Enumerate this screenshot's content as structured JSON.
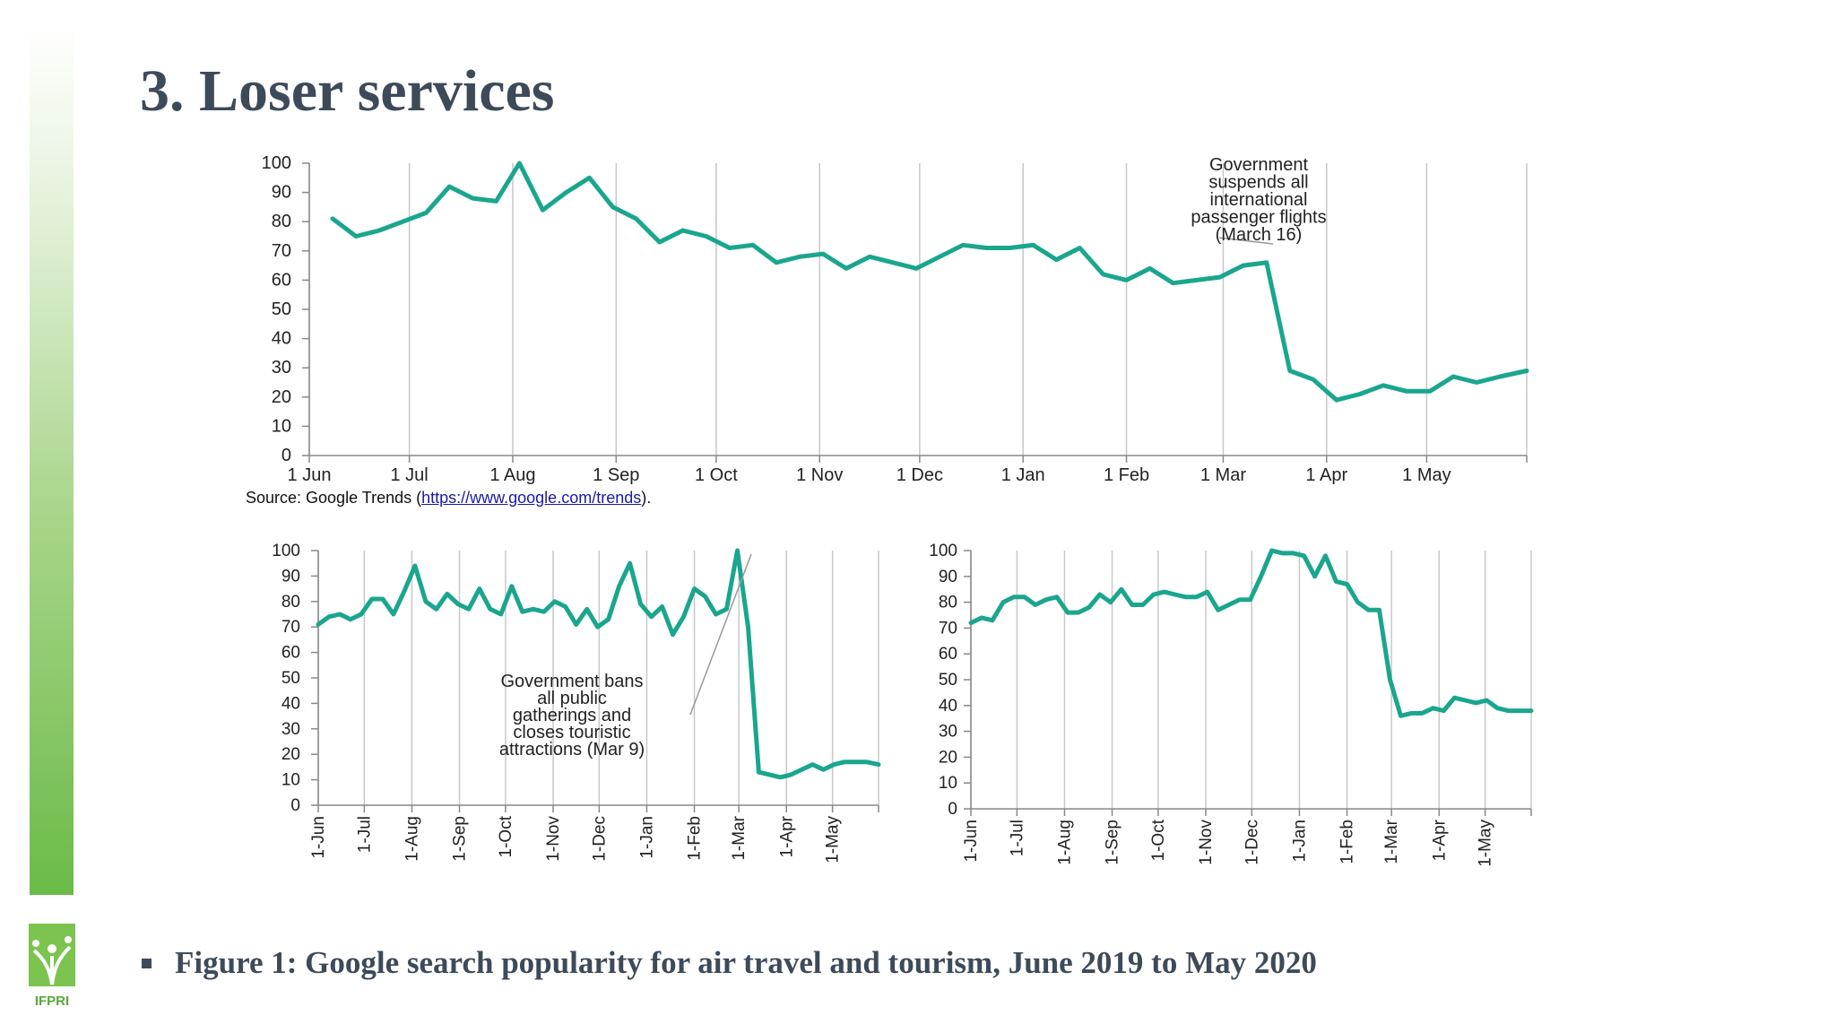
{
  "slide": {
    "title": "3. Loser services",
    "caption": "Figure 1: Google search popularity for air travel and tourism, June 2019 to May 2020",
    "logo_text": "IFPRI",
    "accent_color": "#6bbb48",
    "source_prefix": "Source: Google Trends (",
    "source_link": "https://www.google.com/trends",
    "source_suffix": ")."
  },
  "chart_data": [
    {
      "type": "line",
      "title": "",
      "xlabel": "",
      "ylabel": "",
      "ylim": [
        0,
        100
      ],
      "yticks": [
        0,
        10,
        20,
        30,
        40,
        50,
        60,
        70,
        80,
        90,
        100
      ],
      "grid": "vertical",
      "line_color": "#1aa68e",
      "tick_labels": [
        "1 Jun",
        "1 Jul",
        "1 Aug",
        "1 Sep",
        "1 Oct",
        "1 Nov",
        "1 Dec",
        "1 Jan",
        "1 Feb",
        "1 Mar",
        "1 Apr",
        "1 May"
      ],
      "x_dates": [
        "2019-06-01",
        "2019-07-01",
        "2019-08-01",
        "2019-09-01",
        "2019-10-01",
        "2019-11-01",
        "2019-12-01",
        "2020-01-01",
        "2020-02-01",
        "2020-03-01",
        "2020-04-01",
        "2020-05-01"
      ],
      "x_end": "2020-05-31",
      "series": [
        {
          "x": [
            "2019-06-08",
            "2019-06-15",
            "2019-06-22",
            "2019-06-29",
            "2019-07-06",
            "2019-07-13",
            "2019-07-20",
            "2019-07-27",
            "2019-08-03",
            "2019-08-10",
            "2019-08-17",
            "2019-08-24",
            "2019-08-31",
            "2019-09-07",
            "2019-09-14",
            "2019-09-21",
            "2019-09-28",
            "2019-10-05",
            "2019-10-12",
            "2019-10-19",
            "2019-10-26",
            "2019-11-02",
            "2019-11-09",
            "2019-11-16",
            "2019-11-23",
            "2019-11-30",
            "2019-12-07",
            "2019-12-14",
            "2019-12-21",
            "2019-12-28",
            "2020-01-04",
            "2020-01-11",
            "2020-01-18",
            "2020-01-25",
            "2020-02-01",
            "2020-02-08",
            "2020-02-15",
            "2020-02-22",
            "2020-02-29",
            "2020-03-07",
            "2020-03-14",
            "2020-03-21",
            "2020-03-28",
            "2020-04-04",
            "2020-04-11",
            "2020-04-18",
            "2020-04-25",
            "2020-05-02",
            "2020-05-09",
            "2020-05-16",
            "2020-05-23",
            "2020-05-31"
          ],
          "values": [
            81,
            75,
            77,
            80,
            83,
            92,
            88,
            87,
            100,
            84,
            90,
            95,
            85,
            81,
            73,
            77,
            75,
            71,
            72,
            66,
            68,
            69,
            64,
            68,
            66,
            64,
            68,
            72,
            71,
            71,
            72,
            67,
            71,
            62,
            60,
            64,
            59,
            60,
            61,
            65,
            66,
            29,
            26,
            19,
            21,
            24,
            22,
            22,
            27,
            25,
            27,
            29
          ]
        }
      ],
      "annotations": [
        {
          "lines": [
            "Government",
            "suspends all",
            "international",
            "passenger flights",
            "(March 16)"
          ],
          "points_to": "2020-03-14"
        }
      ],
      "source": "Source: Google Trends (https://www.google.com/trends)."
    },
    {
      "type": "line",
      "title": "",
      "xlabel": "",
      "ylabel": "",
      "ylim": [
        0,
        100
      ],
      "yticks": [
        0,
        10,
        20,
        30,
        40,
        50,
        60,
        70,
        80,
        90,
        100
      ],
      "grid": "vertical",
      "line_color": "#1aa68e",
      "tick_labels": [
        "1-Jun",
        "1-Jul",
        "1-Aug",
        "1-Sep",
        "1-Oct",
        "1-Nov",
        "1-Dec",
        "1-Jan",
        "1-Feb",
        "1-Mar",
        "1-Apr",
        "1-May"
      ],
      "x_dates": [
        "2019-06-01",
        "2019-07-01",
        "2019-08-01",
        "2019-09-01",
        "2019-10-01",
        "2019-11-01",
        "2019-12-01",
        "2020-01-01",
        "2020-02-01",
        "2020-03-01",
        "2020-04-01",
        "2020-05-01"
      ],
      "x_end": "2020-05-31",
      "series": [
        {
          "x": [
            "2019-06-01",
            "2019-06-08",
            "2019-06-15",
            "2019-06-22",
            "2019-06-29",
            "2019-07-06",
            "2019-07-13",
            "2019-07-20",
            "2019-07-27",
            "2019-08-03",
            "2019-08-10",
            "2019-08-17",
            "2019-08-24",
            "2019-08-31",
            "2019-09-07",
            "2019-09-14",
            "2019-09-21",
            "2019-09-28",
            "2019-10-05",
            "2019-10-12",
            "2019-10-19",
            "2019-10-26",
            "2019-11-02",
            "2019-11-09",
            "2019-11-16",
            "2019-11-23",
            "2019-11-30",
            "2019-12-07",
            "2019-12-14",
            "2019-12-21",
            "2019-12-28",
            "2020-01-04",
            "2020-01-11",
            "2020-01-18",
            "2020-01-25",
            "2020-02-01",
            "2020-02-08",
            "2020-02-15",
            "2020-02-22",
            "2020-02-29",
            "2020-03-07",
            "2020-03-14",
            "2020-03-21",
            "2020-03-28",
            "2020-04-04",
            "2020-04-11",
            "2020-04-18",
            "2020-04-25",
            "2020-05-02",
            "2020-05-09",
            "2020-05-16",
            "2020-05-23",
            "2020-05-31"
          ],
          "values": [
            71,
            74,
            75,
            73,
            75,
            81,
            81,
            75,
            84,
            94,
            80,
            77,
            83,
            79,
            77,
            85,
            77,
            75,
            86,
            76,
            77,
            76,
            80,
            78,
            71,
            77,
            70,
            73,
            86,
            95,
            79,
            74,
            78,
            67,
            74,
            85,
            82,
            75,
            77,
            100,
            70,
            13,
            12,
            11,
            12,
            14,
            16,
            14,
            16,
            17,
            17,
            17,
            16
          ]
        }
      ],
      "annotations": [
        {
          "lines": [
            "Government bans",
            "all public",
            "gatherings and",
            "closes touristic",
            "attractions (Mar 9)"
          ],
          "points_to": "2020-03-07"
        }
      ]
    },
    {
      "type": "line",
      "title": "",
      "xlabel": "",
      "ylabel": "",
      "ylim": [
        0,
        100
      ],
      "yticks": [
        0,
        10,
        20,
        30,
        40,
        50,
        60,
        70,
        80,
        90,
        100
      ],
      "grid": "vertical",
      "line_color": "#1aa68e",
      "tick_labels": [
        "1-Jun",
        "1-Jul",
        "1-Aug",
        "1-Sep",
        "1-Oct",
        "1-Nov",
        "1-Dec",
        "1-Jan",
        "1-Feb",
        "1-Mar",
        "1-Apr",
        "1-May"
      ],
      "x_dates": [
        "2019-06-01",
        "2019-07-01",
        "2019-08-01",
        "2019-09-01",
        "2019-10-01",
        "2019-11-01",
        "2019-12-01",
        "2020-01-01",
        "2020-02-01",
        "2020-03-01",
        "2020-04-01",
        "2020-05-01"
      ],
      "x_end": "2020-05-31",
      "series": [
        {
          "x": [
            "2019-06-01",
            "2019-06-08",
            "2019-06-15",
            "2019-06-22",
            "2019-06-29",
            "2019-07-06",
            "2019-07-13",
            "2019-07-20",
            "2019-07-27",
            "2019-08-03",
            "2019-08-10",
            "2019-08-17",
            "2019-08-24",
            "2019-08-31",
            "2019-09-07",
            "2019-09-14",
            "2019-09-21",
            "2019-09-28",
            "2019-10-05",
            "2019-10-12",
            "2019-10-19",
            "2019-10-26",
            "2019-11-02",
            "2019-11-09",
            "2019-11-16",
            "2019-11-23",
            "2019-11-30",
            "2019-12-07",
            "2019-12-14",
            "2019-12-21",
            "2019-12-28",
            "2020-01-04",
            "2020-01-11",
            "2020-01-18",
            "2020-01-25",
            "2020-02-01",
            "2020-02-08",
            "2020-02-15",
            "2020-02-22",
            "2020-02-29",
            "2020-03-07",
            "2020-03-14",
            "2020-03-21",
            "2020-03-28",
            "2020-04-04",
            "2020-04-11",
            "2020-04-18",
            "2020-04-25",
            "2020-05-02",
            "2020-05-09",
            "2020-05-16",
            "2020-05-23",
            "2020-05-31"
          ],
          "values": [
            72,
            74,
            73,
            80,
            82,
            82,
            79,
            81,
            82,
            76,
            76,
            78,
            83,
            80,
            85,
            79,
            79,
            83,
            84,
            83,
            82,
            82,
            84,
            77,
            79,
            81,
            81,
            90,
            100,
            99,
            99,
            98,
            90,
            98,
            88,
            87,
            80,
            77,
            77,
            50,
            36,
            37,
            37,
            39,
            38,
            43,
            42,
            41,
            42,
            39,
            38,
            38,
            38
          ]
        }
      ],
      "annotations": []
    }
  ]
}
